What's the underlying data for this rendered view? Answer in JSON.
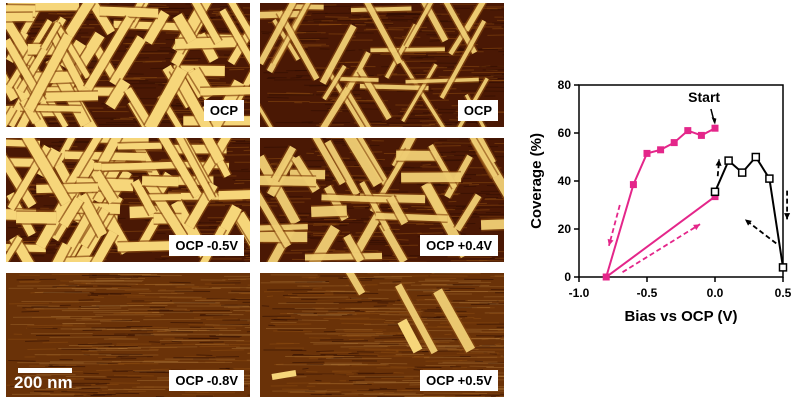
{
  "panels": [
    {
      "label": "OCP",
      "texture": "dense"
    },
    {
      "label": "OCP",
      "texture": "sparse"
    },
    {
      "label": "OCP -0.5V",
      "texture": "dense"
    },
    {
      "label": "OCP +0.4V",
      "texture": "medium"
    },
    {
      "label": "OCP -0.8V",
      "texture": "none"
    },
    {
      "label": "OCP +0.5V",
      "texture": "few"
    }
  ],
  "scale_bar": {
    "label": "200 nm"
  },
  "colors": {
    "afm_dark": "#4a1804",
    "afm_mid": "#8a4a10",
    "afm_bright": "#f6d67a",
    "series_pink": "#e4268a",
    "series_black": "#000000"
  },
  "chart_data": {
    "type": "line",
    "title": "",
    "xlabel": "Bias vs OCP (V)",
    "ylabel": "Coverage (%)",
    "xlim": [
      -1.0,
      0.5
    ],
    "ylim": [
      0,
      80
    ],
    "xticks": [
      -1.0,
      -0.5,
      0.0,
      0.5
    ],
    "xtick_labels": [
      "-1.0",
      "-0.5",
      "0.0",
      "0.5"
    ],
    "yticks": [
      0,
      20,
      40,
      60,
      80
    ],
    "ytick_labels": [
      "0",
      "20",
      "40",
      "60",
      "80"
    ],
    "annotation": "Start",
    "series": [
      {
        "color": "#e4268a",
        "marker": "filled-square",
        "points": [
          [
            0.0,
            62
          ],
          [
            -0.1,
            59
          ],
          [
            -0.2,
            61
          ],
          [
            -0.3,
            56
          ],
          [
            -0.4,
            53
          ],
          [
            -0.5,
            51.5
          ],
          [
            -0.6,
            38.5
          ],
          [
            -0.8,
            0
          ],
          [
            0.0,
            33.5
          ]
        ]
      },
      {
        "color": "#000000",
        "marker": "open-square",
        "points": [
          [
            0.0,
            35.5
          ],
          [
            0.1,
            48.5
          ],
          [
            0.2,
            43.5
          ],
          [
            0.3,
            50
          ],
          [
            0.4,
            41
          ],
          [
            0.5,
            4
          ]
        ]
      }
    ]
  }
}
